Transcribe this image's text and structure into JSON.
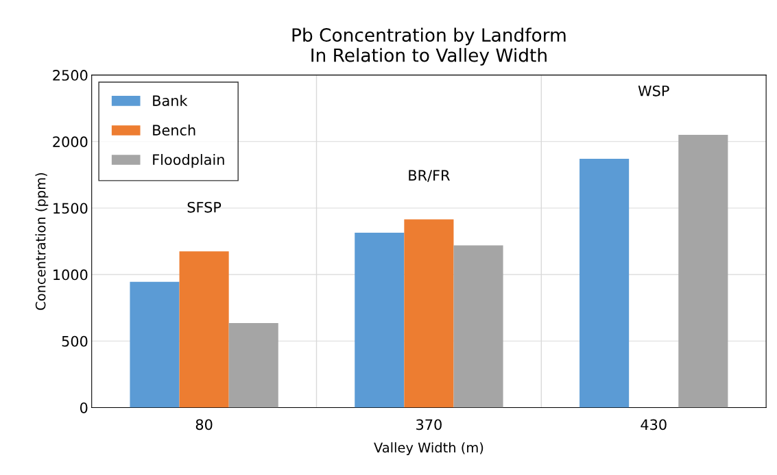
{
  "chart_data": {
    "type": "bar",
    "title": "Pb Concentration by Landform\nIn Relation to Valley Width",
    "xlabel": "Valley Width (m)",
    "ylabel": "Concentration (ppm)",
    "categories": [
      "80",
      "370",
      "430"
    ],
    "series": [
      {
        "name": "Bank",
        "color": "#5b9bd5",
        "values": [
          945,
          1315,
          1870
        ]
      },
      {
        "name": "Bench",
        "color": "#ed7d31",
        "values": [
          1175,
          1415,
          null
        ]
      },
      {
        "name": "Floodplain",
        "color": "#a5a5a5",
        "values": [
          635,
          1220,
          2050
        ]
      }
    ],
    "ylim": [
      0,
      2500
    ],
    "yticks": [
      0,
      500,
      1000,
      1500,
      2000,
      2500
    ],
    "grid": true,
    "legend": "top left",
    "annotations": [
      "SFSP",
      "BR/FR",
      "WSP"
    ]
  }
}
